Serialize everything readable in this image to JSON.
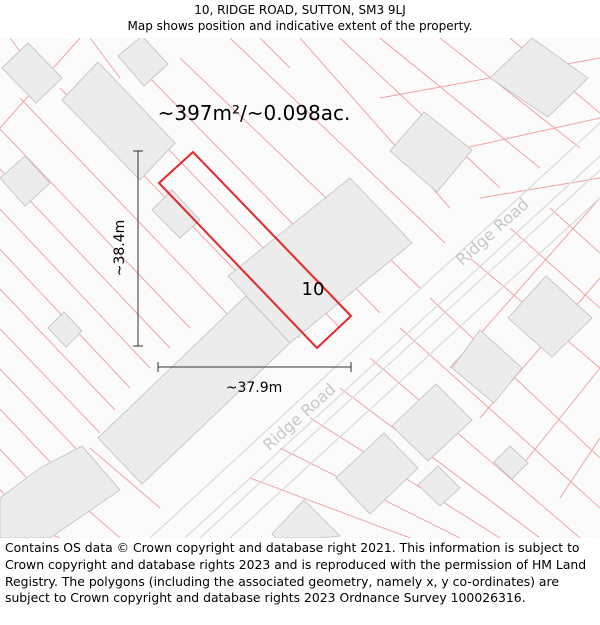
{
  "header": {
    "address": "10, RIDGE ROAD, SUTTON, SM3 9LJ",
    "subtitle": "Map shows position and indicative extent of the property."
  },
  "map": {
    "area_label": "~397m²/~0.098ac.",
    "plot_number": "10",
    "height_dimension": "~38.4m",
    "width_dimension": "~37.9m",
    "road_labels": [
      "Ridge Road",
      "Ridge Road"
    ],
    "colors": {
      "boundary": "#e8262a",
      "parcel_lines": "#f2a3a3",
      "building_fill": "#ececec",
      "building_stroke": "#c8c8c8",
      "road_edge": "#d9d9d9",
      "road_label": "#c7c7c7",
      "dimension": "#333333"
    }
  },
  "footer": {
    "copyright": "Contains OS data © Crown copyright and database right 2021. This information is subject to Crown copyright and database rights 2023 and is reproduced with the permission of HM Land Registry. The polygons (including the associated geometry, namely x, y co-ordinates) are subject to Crown copyright and database rights 2023 Ordnance Survey 100026316."
  }
}
